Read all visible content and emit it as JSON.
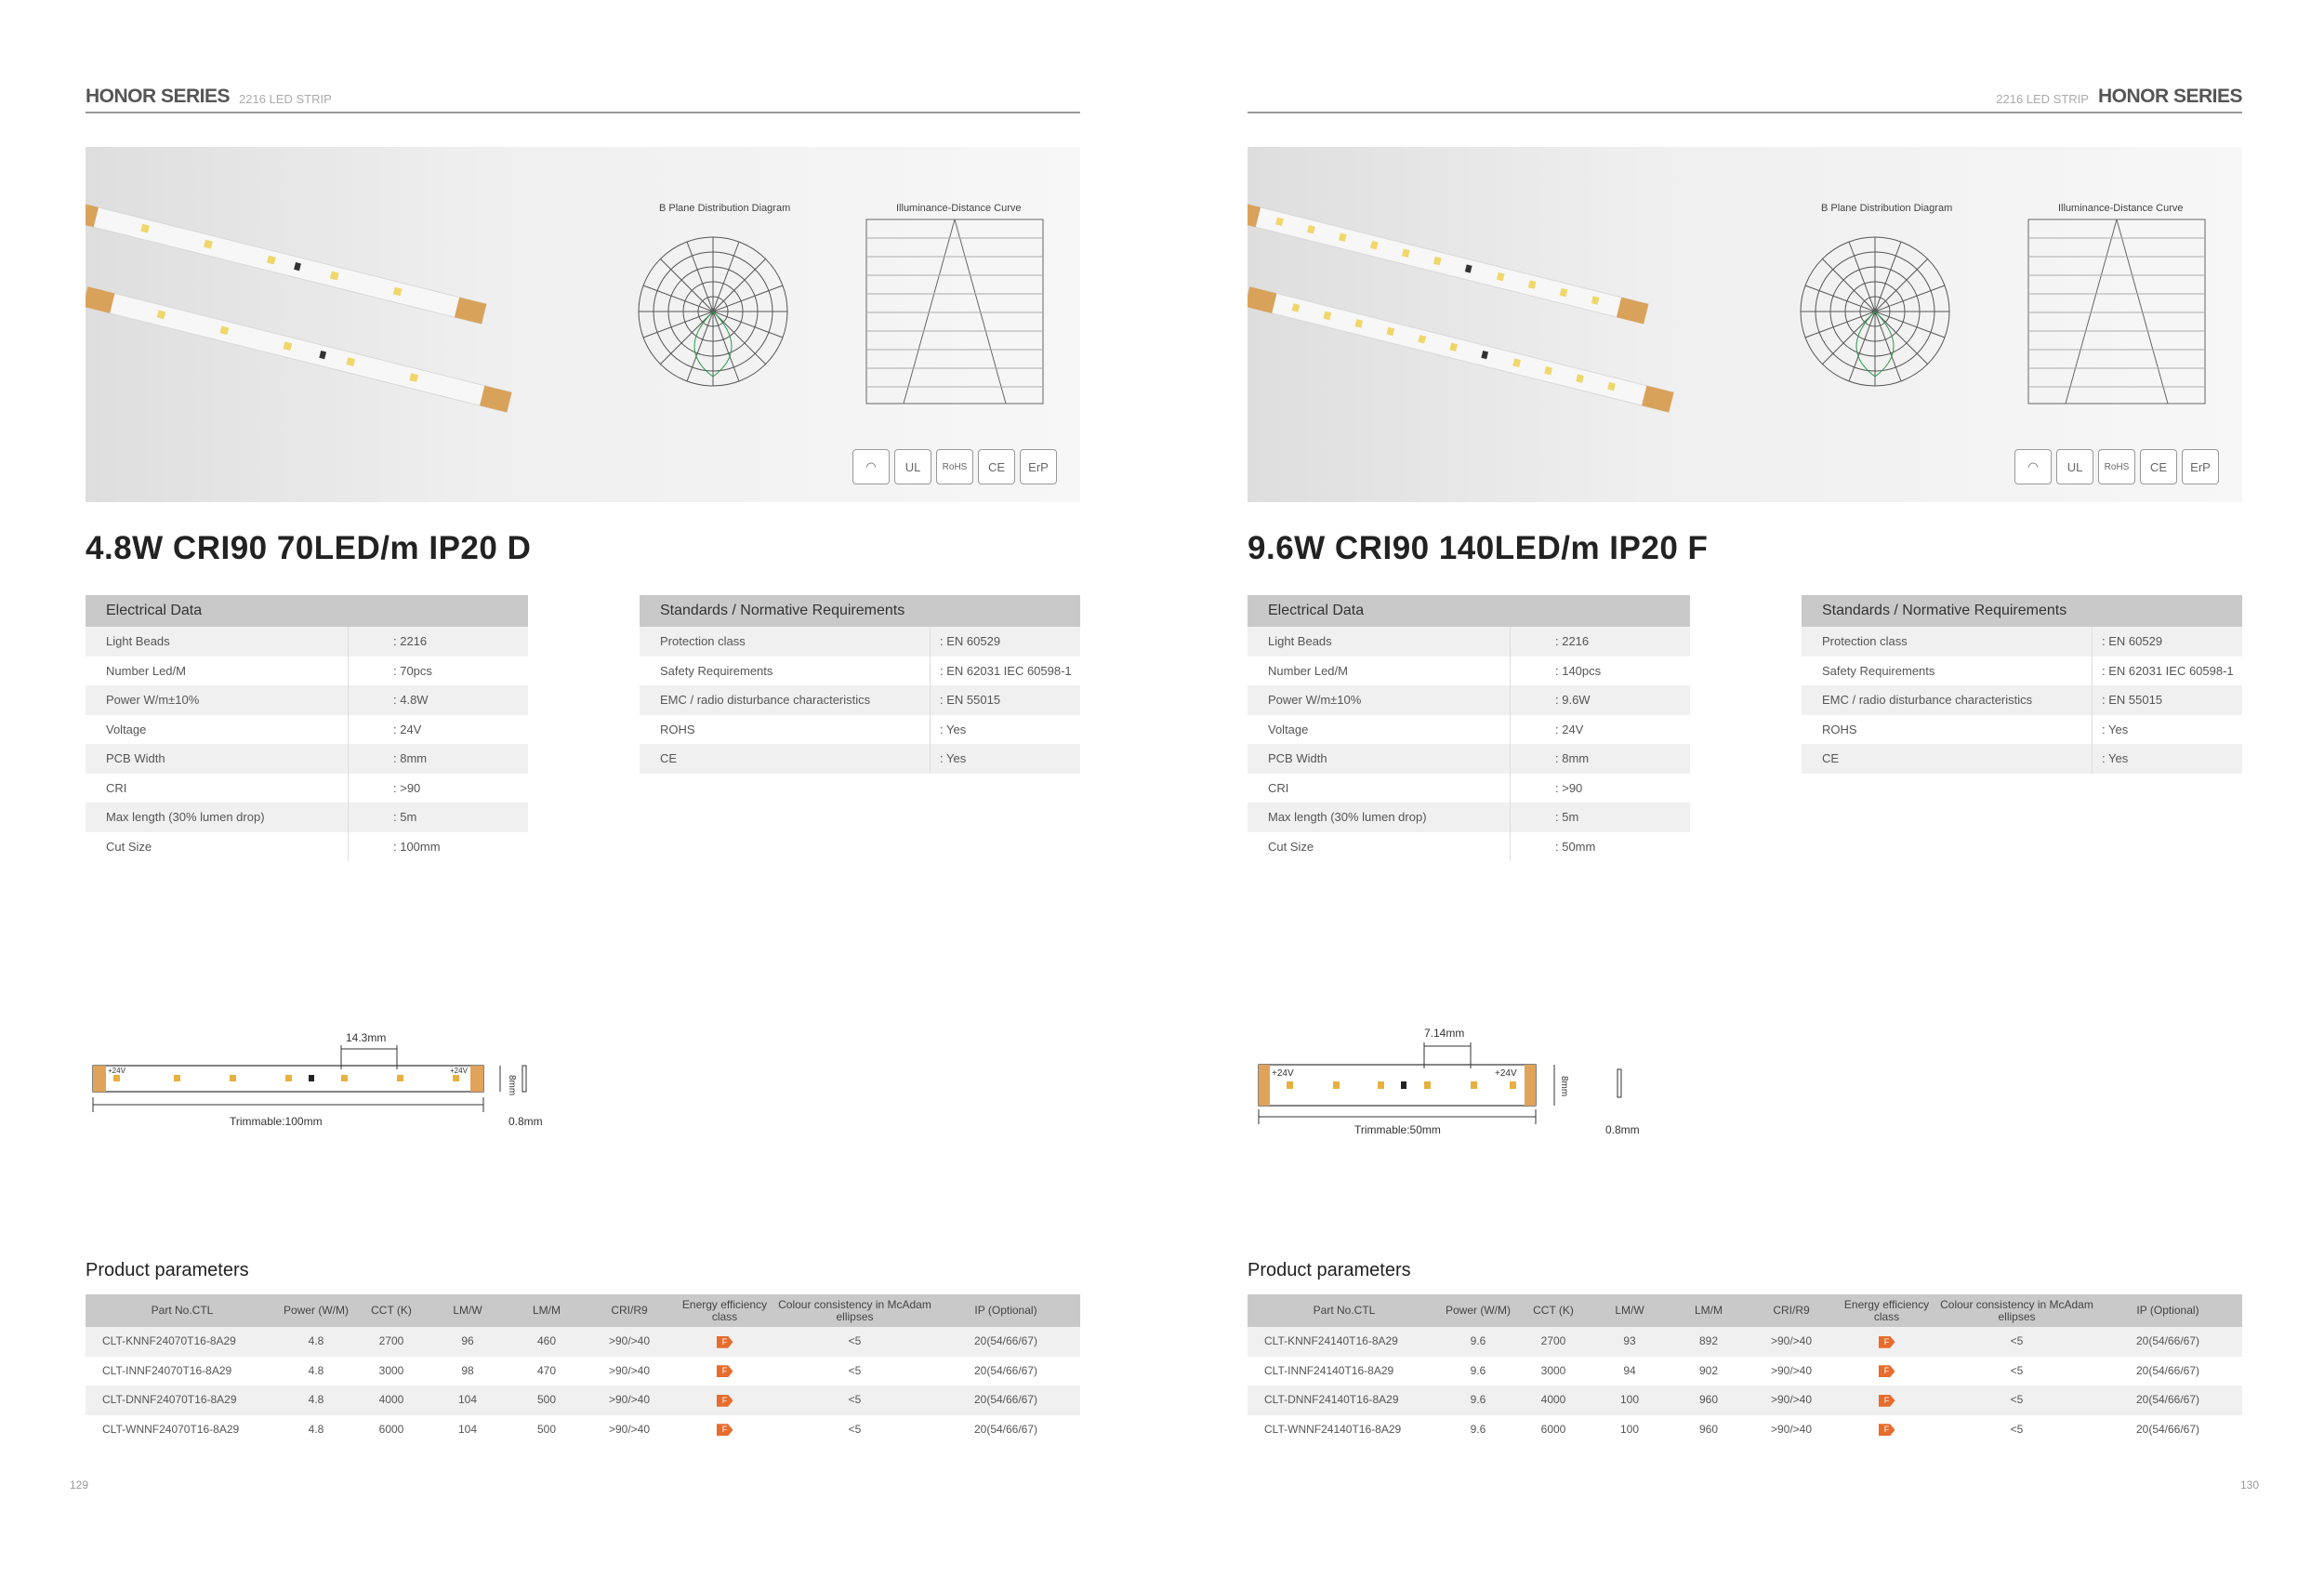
{
  "pages": [
    {
      "header": {
        "series": "HONOR SERIES",
        "sub": "2216 LED STRIP"
      },
      "diagram": {
        "b_plane_title": "B Plane Distribution Diagram",
        "illum_title": "Illuminance-Distance Curve"
      },
      "certs": [
        "ErP",
        "CE",
        "RoHS",
        "UL",
        "cert"
      ],
      "product_title": "4.8W CRI90 70LED/m IP20 D",
      "electrical": {
        "title": "Electrical Data",
        "rows": [
          {
            "k": "Light Beads",
            "v": ": 2216"
          },
          {
            "k": "Number Led/M",
            "v": ": 70pcs"
          },
          {
            "k": "Power W/m±10%",
            "v": ": 4.8W"
          },
          {
            "k": "Voltage",
            "v": ": 24V"
          },
          {
            "k": "PCB Width",
            "v": ": 8mm"
          },
          {
            "k": "CRI",
            "v": ": >90"
          },
          {
            "k": "Max length (30% lumen drop)",
            "v": ": 5m"
          },
          {
            "k": "Cut Size",
            "v": ": 100mm"
          }
        ]
      },
      "standards": {
        "title": "Standards / Normative Requirements",
        "rows": [
          {
            "k": "Protection class",
            "v": ": EN 60529"
          },
          {
            "k": "Safety Requirements",
            "v": ": EN 62031 IEC 60598-1"
          },
          {
            "k": "EMC / radio disturbance characteristics",
            "v": ": EN 55015"
          },
          {
            "k": "ROHS",
            "v": ": Yes"
          },
          {
            "k": "CE",
            "v": ": Yes"
          }
        ]
      },
      "strip": {
        "pitch": "14.3mm",
        "trim": "Trimmable:100mm",
        "width": "8mm",
        "thick": "0.8mm",
        "v1": "+24V",
        "v2": "+24V"
      },
      "params_title": "Product parameters",
      "params_head": [
        "Part No.CTL",
        "Power (W/M)",
        "CCT (K)",
        "LM/W",
        "LM/M",
        "CRI/R9",
        "Energy efficiency class",
        "Colour consistency in McAdam ellipses",
        "IP (Optional)"
      ],
      "params_rows": [
        [
          "CLT-KNNF24070T16-8A29",
          "4.8",
          "2700",
          "96",
          "460",
          ">90/>40",
          "F",
          "<5",
          "20(54/66/67)"
        ],
        [
          "CLT-INNF24070T16-8A29",
          "4.8",
          "3000",
          "98",
          "470",
          ">90/>40",
          "F",
          "<5",
          "20(54/66/67)"
        ],
        [
          "CLT-DNNF24070T16-8A29",
          "4.8",
          "4000",
          "104",
          "500",
          ">90/>40",
          "F",
          "<5",
          "20(54/66/67)"
        ],
        [
          "CLT-WNNF24070T16-8A29",
          "4.8",
          "6000",
          "104",
          "500",
          ">90/>40",
          "F",
          "<5",
          "20(54/66/67)"
        ]
      ],
      "page_no": "129"
    },
    {
      "header": {
        "series": "HONOR SERIES",
        "sub": "2216 LED STRIP"
      },
      "diagram": {
        "b_plane_title": "B Plane Distribution Diagram",
        "illum_title": "Illuminance-Distance Curve"
      },
      "certs": [
        "ErP",
        "CE",
        "RoHS",
        "UL",
        "cert"
      ],
      "product_title": "9.6W CRI90 140LED/m IP20 F",
      "electrical": {
        "title": "Electrical Data",
        "rows": [
          {
            "k": "Light Beads",
            "v": ": 2216"
          },
          {
            "k": "Number Led/M",
            "v": ": 140pcs"
          },
          {
            "k": "Power W/m±10%",
            "v": ": 9.6W"
          },
          {
            "k": "Voltage",
            "v": ": 24V"
          },
          {
            "k": "PCB Width",
            "v": ": 8mm"
          },
          {
            "k": "CRI",
            "v": ": >90"
          },
          {
            "k": "Max length (30% lumen drop)",
            "v": ": 5m"
          },
          {
            "k": "Cut Size",
            "v": ": 50mm"
          }
        ]
      },
      "standards": {
        "title": "Standards / Normative Requirements",
        "rows": [
          {
            "k": "Protection class",
            "v": ": EN 60529"
          },
          {
            "k": "Safety Requirements",
            "v": ": EN 62031 IEC 60598-1"
          },
          {
            "k": "EMC / radio disturbance characteristics",
            "v": ": EN 55015"
          },
          {
            "k": "ROHS",
            "v": ": Yes"
          },
          {
            "k": "CE",
            "v": ": Yes"
          }
        ]
      },
      "strip": {
        "pitch": "7.14mm",
        "trim": "Trimmable:50mm",
        "width": "8mm",
        "thick": "0.8mm",
        "v1": "+24V",
        "v2": "+24V"
      },
      "params_title": "Product parameters",
      "params_head": [
        "Part No.CTL",
        "Power (W/M)",
        "CCT (K)",
        "LM/W",
        "LM/M",
        "CRI/R9",
        "Energy efficiency class",
        "Colour consistency in McAdam ellipses",
        "IP (Optional)"
      ],
      "params_rows": [
        [
          "CLT-KNNF24140T16-8A29",
          "9.6",
          "2700",
          "93",
          "892",
          ">90/>40",
          "F",
          "<5",
          "20(54/66/67)"
        ],
        [
          "CLT-INNF24140T16-8A29",
          "9.6",
          "3000",
          "94",
          "902",
          ">90/>40",
          "F",
          "<5",
          "20(54/66/67)"
        ],
        [
          "CLT-DNNF24140T16-8A29",
          "9.6",
          "4000",
          "100",
          "960",
          ">90/>40",
          "F",
          "<5",
          "20(54/66/67)"
        ],
        [
          "CLT-WNNF24140T16-8A29",
          "9.6",
          "6000",
          "100",
          "960",
          ">90/>40",
          "F",
          "<5",
          "20(54/66/67)"
        ]
      ],
      "page_no": "130"
    }
  ]
}
